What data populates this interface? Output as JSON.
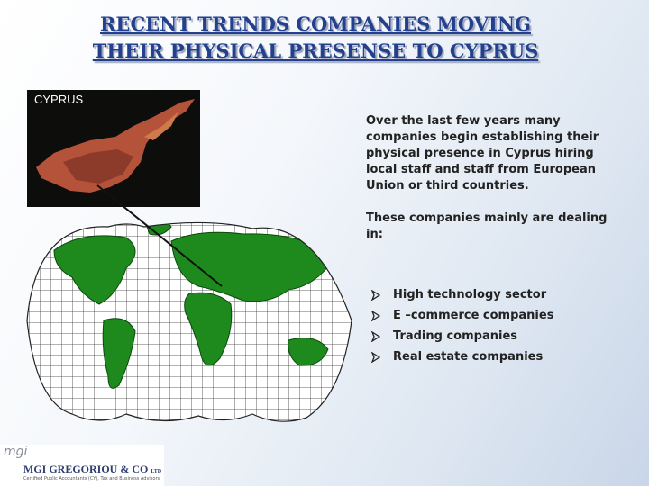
{
  "title": {
    "lines": [
      "RECENT TRENDS COMPANIES MOVING",
      "THEIR PHYSICAL PRESENSE TO CYPRUS"
    ]
  },
  "image_label": "CYPRUS",
  "paragraphs": [
    [
      "Over the last few years many",
      "companies begin establishing their",
      "physical presence in Cyprus hiring",
      "local staff and staff from European",
      "Union or third countries."
    ],
    [
      "These companies mainly are dealing",
      "in:"
    ]
  ],
  "bullets": [
    "High technology sector",
    "E –commerce companies",
    "Trading companies",
    "Real estate companies"
  ],
  "logo": {
    "mark": "mgi",
    "name": "MGI GREGORIOU & CO",
    "suffix": "LTD",
    "tagline": "Certified Public Accountants (CY), Tax and Business Advisors"
  }
}
